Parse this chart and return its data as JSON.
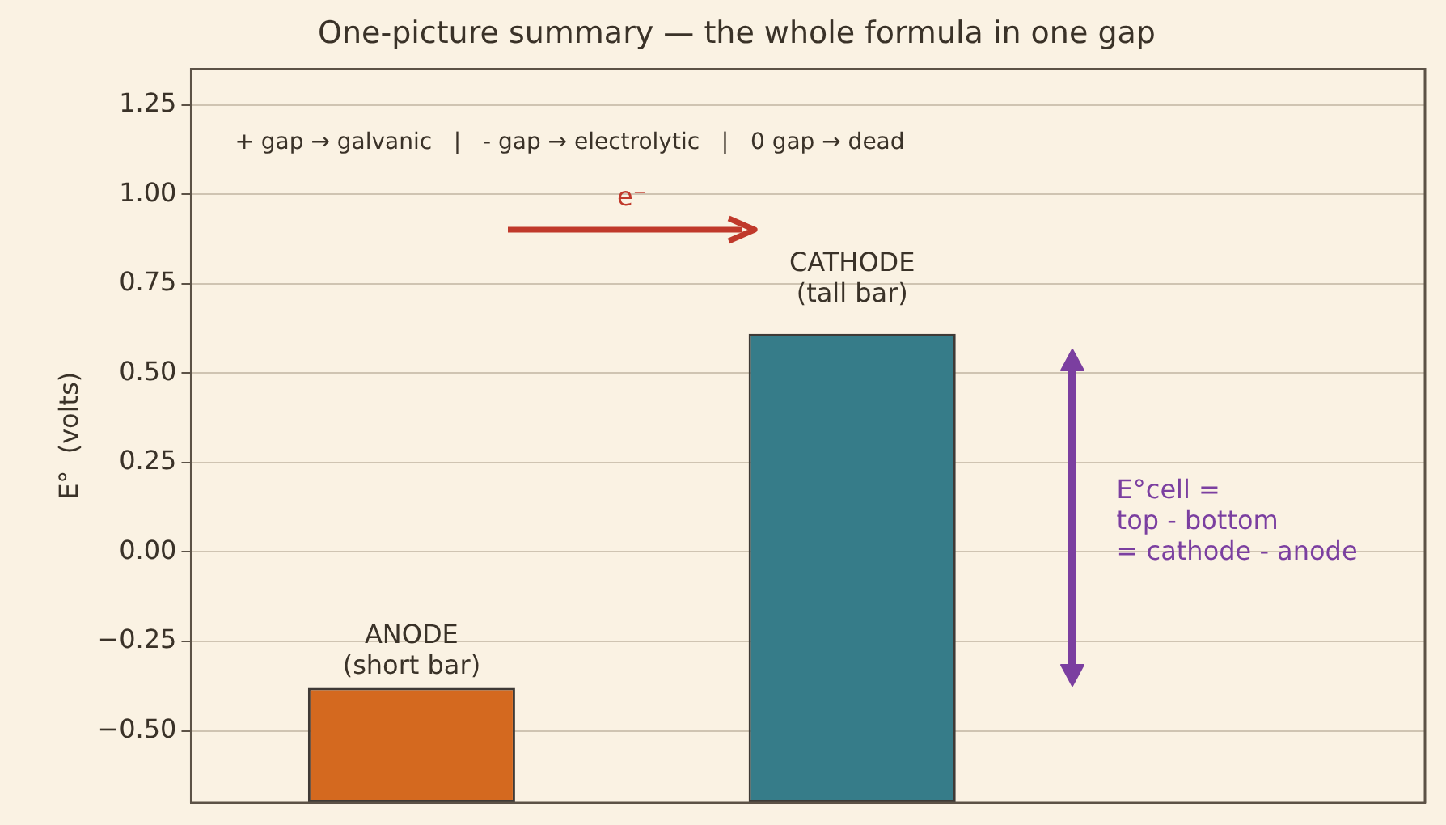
{
  "chart_data": {
    "type": "bar",
    "title": "One-picture summary — the whole formula in one gap",
    "ylabel": "E°  (volts)",
    "categories": [
      null,
      null
    ],
    "values": [
      0.32,
      1.31
    ],
    "base": [
      -0.7,
      -0.7
    ],
    "colors": [
      "#d4691f",
      "#367c89"
    ],
    "ylim": [
      -0.7,
      1.35
    ],
    "yticks": [
      {
        "value": -0.5,
        "label": "−0.50"
      },
      {
        "value": -0.25,
        "label": "−0.25"
      },
      {
        "value": 0,
        "label": "0.00"
      },
      {
        "value": 0.25,
        "label": "0.25"
      },
      {
        "value": 0.5,
        "label": "0.50"
      },
      {
        "value": 0.75,
        "label": "0.75"
      },
      {
        "value": 1,
        "label": "1.00"
      },
      {
        "value": 1.25,
        "label": "1.25"
      }
    ],
    "grid": "y",
    "legend": false,
    "tick_labels": "y",
    "annotations": [
      "+ gap → galvanic   |   - gap → electrolytic   |   0 gap → dead",
      "ANODE\n(short bar)",
      "CATHODE\n(tall bar)",
      "e⁻",
      "E°cell =\ntop - bottom\n= cathode - anode"
    ]
  }
}
